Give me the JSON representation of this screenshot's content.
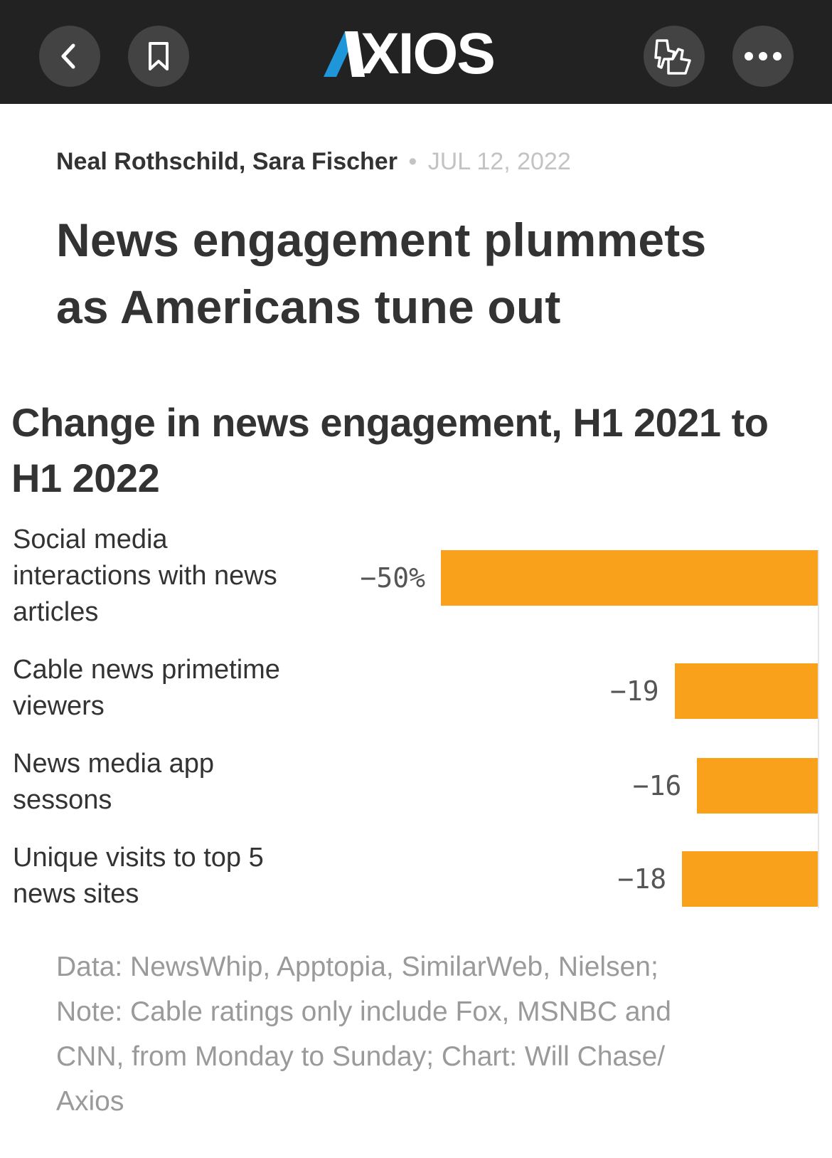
{
  "app": {
    "logo_text": "XIOS",
    "logo_lettering": "AXIOS",
    "brand_color": "#1e96d8",
    "accent_color": "#f9a11b"
  },
  "toolbar": {
    "back_icon": "chevron-left-icon",
    "bookmark_icon": "bookmark-icon",
    "reactions_icon": "thumbs-reaction-icon",
    "more_icon": "more-dots-icon"
  },
  "article": {
    "authors": "Neal Rothschild, Sara Fischer",
    "separator": "•",
    "date": "JUL 12, 2022",
    "headline_line1": "News engagement plummets",
    "headline_line2": "as Americans tune out"
  },
  "chart_data": {
    "type": "bar",
    "orientation": "horizontal",
    "title": "Change in news engagement, H1 2021 to H1 2022",
    "categories": [
      "Social media interactions with news articles",
      "Cable news primetime viewers",
      "News media app sessons",
      "Unique visits to top 5 news sites"
    ],
    "category_lines": [
      [
        "Social media",
        "interactions with news",
        "articles"
      ],
      [
        "Cable news primetime",
        "viewers"
      ],
      [
        "News media app",
        "sessons"
      ],
      [
        "Unique visits to top 5",
        "news sites"
      ]
    ],
    "values": [
      -50,
      -19,
      -16,
      -18
    ],
    "value_labels": [
      "−50%",
      "−19",
      "−16",
      "−18"
    ],
    "unit": "%",
    "xlim": [
      -50,
      0
    ],
    "bar_color": "#f9a11b",
    "footnote_line1": "Data: NewsWhip, Apptopia, SimilarWeb, Nielsen;",
    "footnote_line2": "Note: Cable ratings only include Fox, MSNBC and",
    "footnote_line3": "CNN, from Monday to Sunday; Chart: Will Chase/",
    "footnote_line4": "Axios"
  }
}
